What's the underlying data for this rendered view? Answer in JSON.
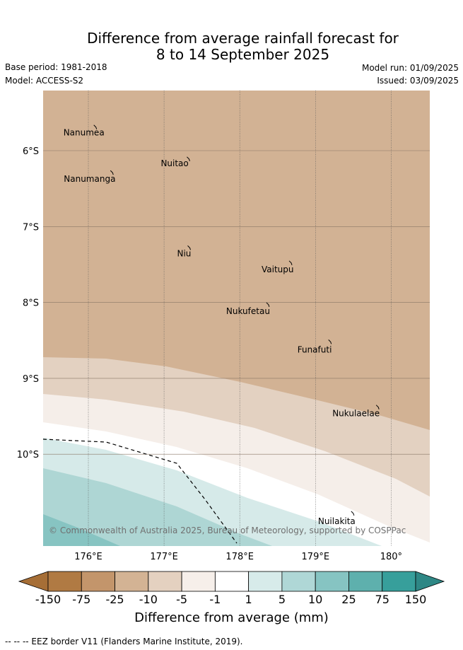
{
  "title": {
    "line1": "Difference from average rainfall forecast for",
    "line2": "8 to 14 September 2025"
  },
  "meta": {
    "base_period": "Base period: 1981-2018",
    "model": "Model: ACCESS-S2",
    "model_run": "Model run: 01/09/2025",
    "issued": "Issued: 03/09/2025"
  },
  "map": {
    "lon_range": [
      175.4,
      180.5
    ],
    "lat_range": [
      -11.25,
      -5.25
    ],
    "lon_ticks": [
      "176°E",
      "177°E",
      "178°E",
      "179°E",
      "180°"
    ],
    "lat_ticks": [
      "6°S",
      "7°S",
      "8°S",
      "9°S",
      "10°S"
    ],
    "copyright": "© Commonwealth of Australia 2025, Bureau of Meteorology, supported by COSPPac",
    "places": [
      {
        "name": "Nanumea",
        "lon": 176.1,
        "lat": -5.69
      },
      {
        "name": "Nuitao",
        "lon": 177.33,
        "lat": -6.11
      },
      {
        "name": "Nanumanga",
        "lon": 176.32,
        "lat": -6.29
      },
      {
        "name": "Niu",
        "lon": 177.34,
        "lat": -7.28
      },
      {
        "name": "Vaitupu",
        "lon": 178.68,
        "lat": -7.48
      },
      {
        "name": "Nukufetau",
        "lon": 178.38,
        "lat": -8.03
      },
      {
        "name": "Funafuti",
        "lon": 179.2,
        "lat": -8.52
      },
      {
        "name": "Nukulaelae",
        "lon": 179.83,
        "lat": -9.38
      },
      {
        "name": "Nuilakita",
        "lon": 179.5,
        "lat": -10.78
      }
    ]
  },
  "colorbar": {
    "title": "Difference from average (mm)",
    "labels": [
      "-150",
      "-75",
      "-25",
      "-10",
      "-5",
      "-1",
      "1",
      "5",
      "10",
      "25",
      "75",
      "150"
    ],
    "colors": [
      "#a66e36",
      "#b07a43",
      "#c3956b",
      "#d3b394",
      "#e4d1c0",
      "#f6efea",
      "#ffffff",
      "#d7ebea",
      "#afd7d6",
      "#86c4c2",
      "#5eb0ad",
      "#379f9b",
      "#2e8785"
    ]
  },
  "footnote": "-- -- -- EEZ border V11 (Flanders Marine Institute, 2019)."
}
